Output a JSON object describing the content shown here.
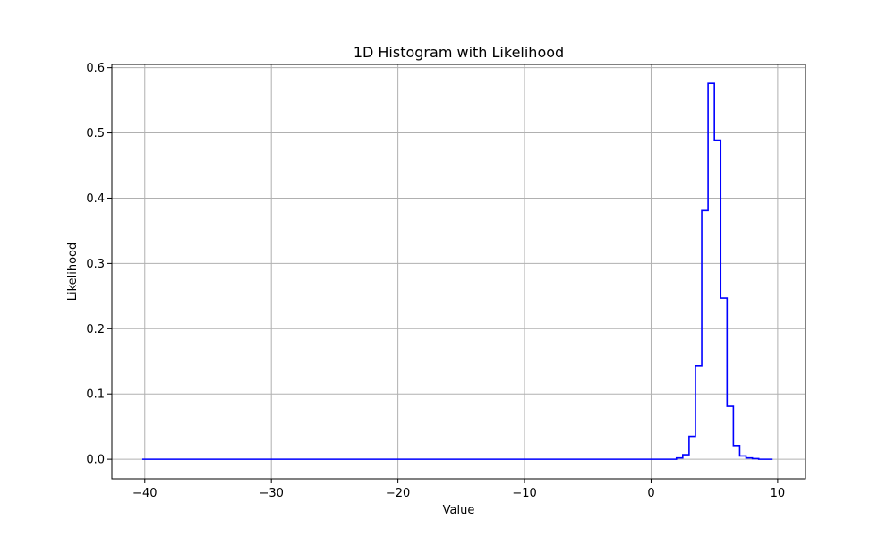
{
  "chart_data": {
    "type": "line",
    "style": "step",
    "title": "1D Histogram with Likelihood",
    "xlabel": "Value",
    "ylabel": "Likelihood",
    "xlim": [
      -42.6,
      12.2
    ],
    "ylim": [
      -0.03,
      0.605
    ],
    "grid": true,
    "line_color": "#0000ff",
    "grid_color": "#b0b0b0",
    "x_ticks": [
      -40,
      -30,
      -20,
      -10,
      0,
      10
    ],
    "x_tick_labels": [
      "−40",
      "−30",
      "−20",
      "−10",
      "0",
      "10"
    ],
    "y_ticks": [
      0.0,
      0.1,
      0.2,
      0.3,
      0.4,
      0.5,
      0.6
    ],
    "y_tick_labels": [
      "0.0",
      "0.1",
      "0.2",
      "0.3",
      "0.4",
      "0.5",
      "0.6"
    ],
    "series": [
      {
        "edges": [
          -40.2,
          2.0,
          2.5,
          3.0,
          3.5,
          4.0,
          4.5,
          5.0,
          5.5,
          6.0,
          6.5,
          7.0,
          7.5,
          8.0,
          8.5,
          9.0,
          9.6
        ],
        "values": [
          0.0,
          0.002,
          0.007,
          0.035,
          0.143,
          0.381,
          0.576,
          0.489,
          0.247,
          0.081,
          0.021,
          0.005,
          0.002,
          0.001,
          0.0,
          0.0
        ]
      }
    ]
  }
}
